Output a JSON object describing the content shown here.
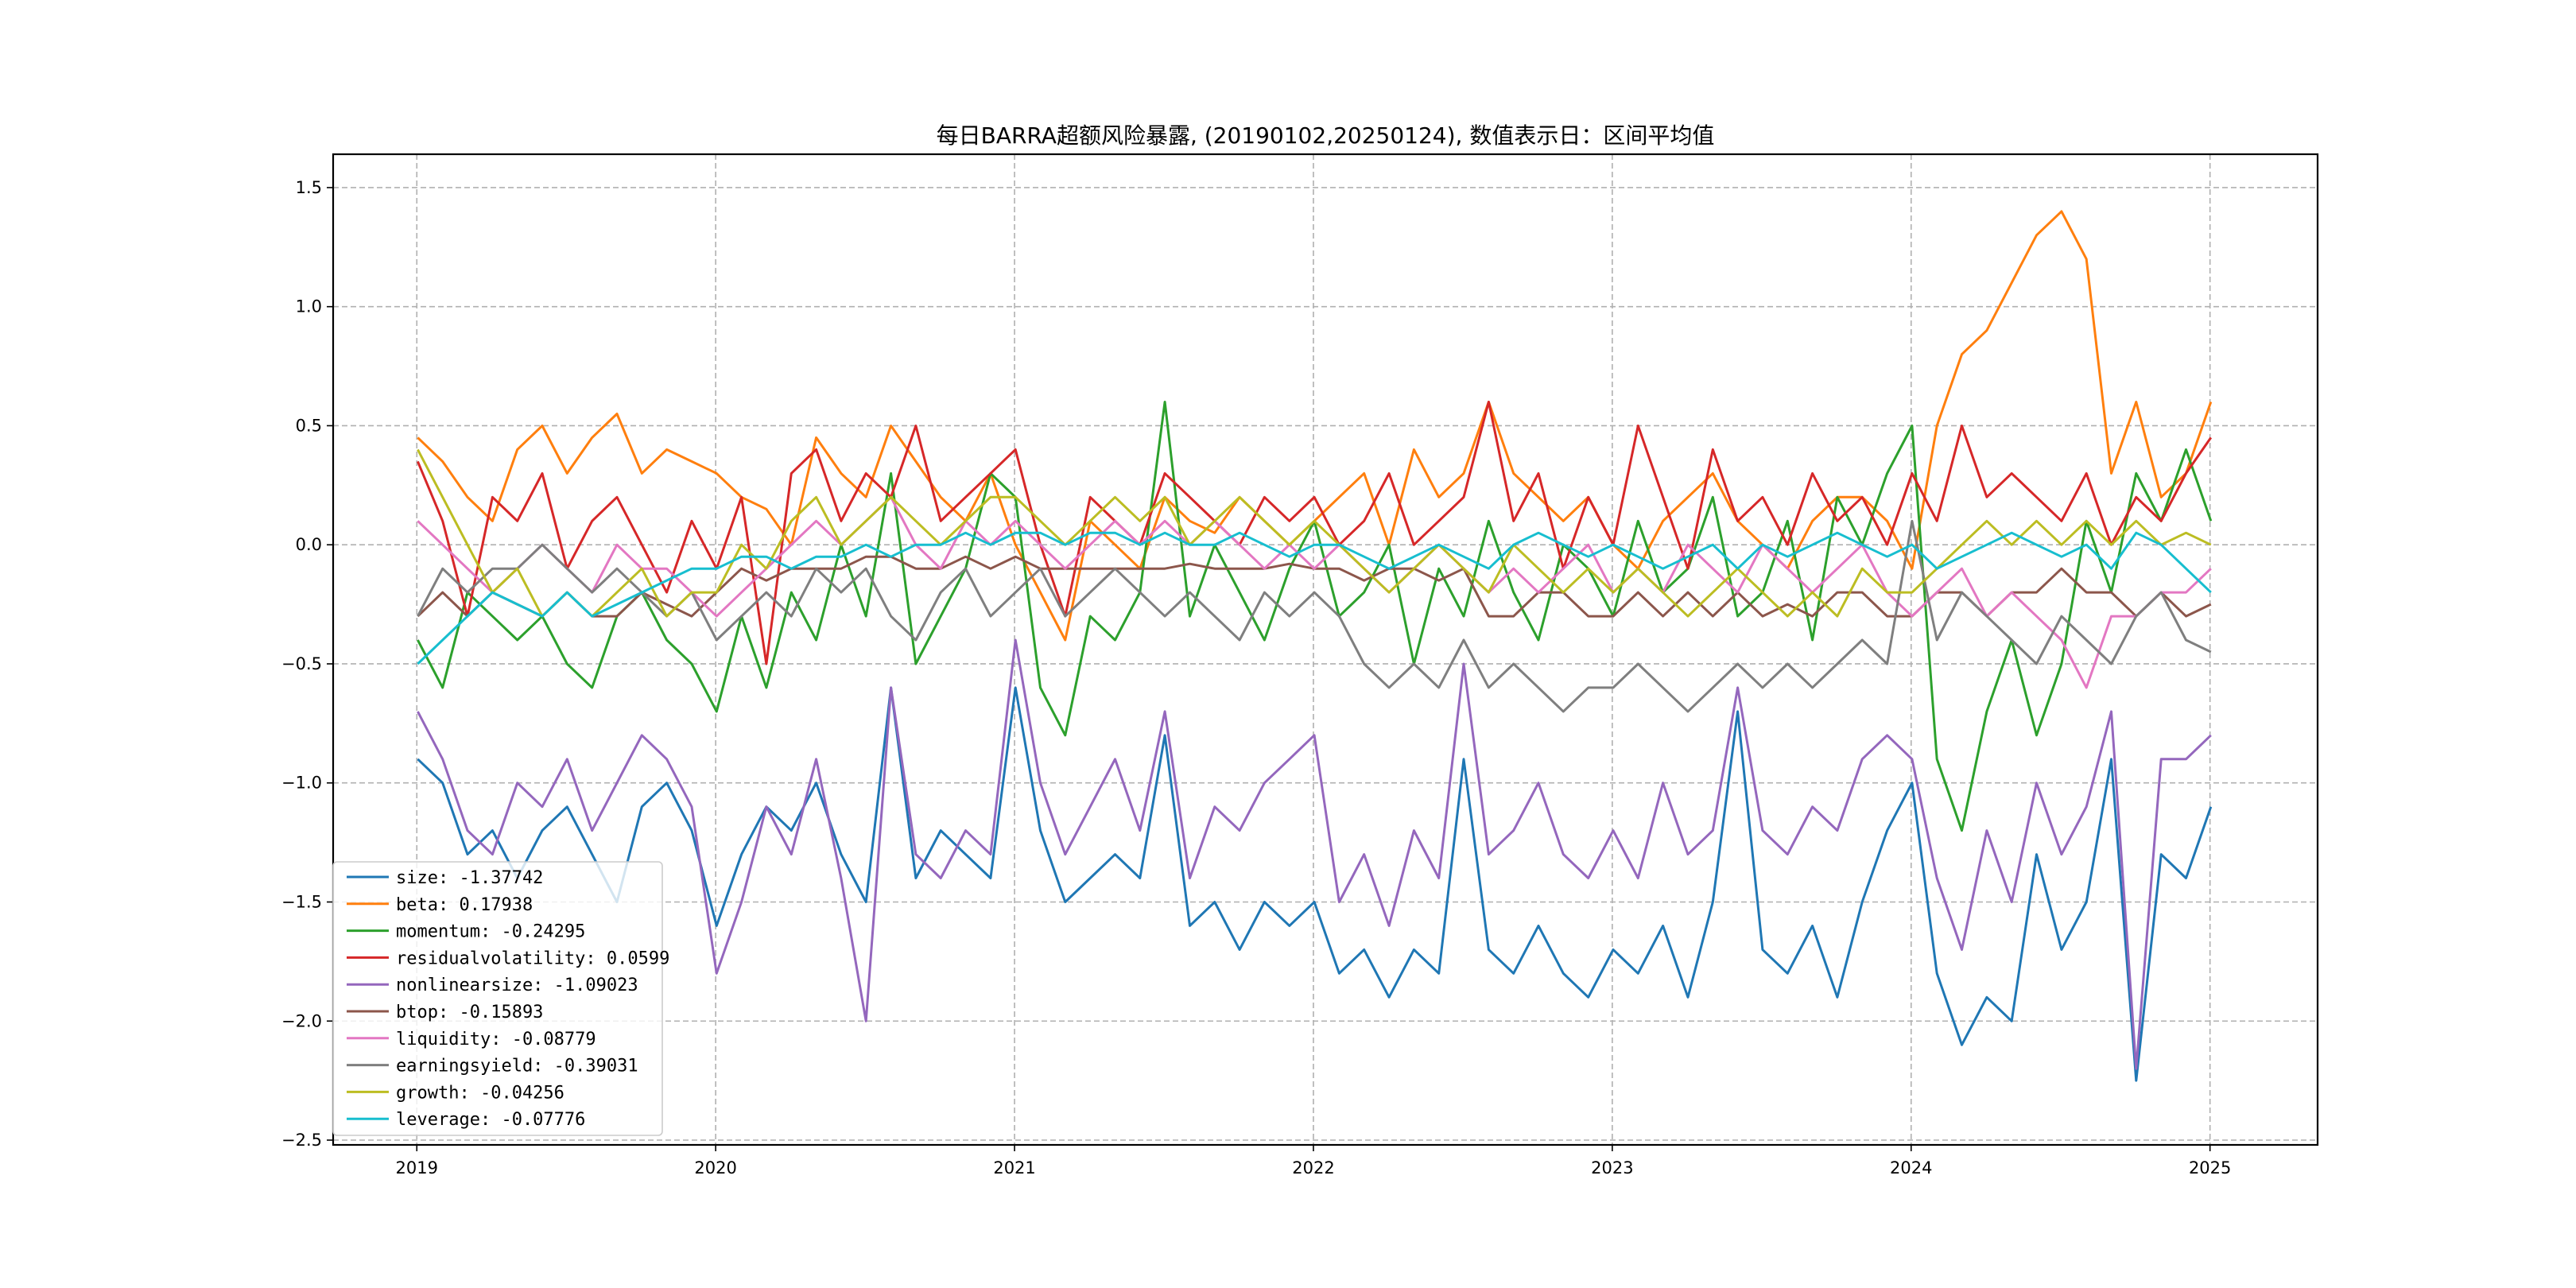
{
  "chart_data": {
    "type": "line",
    "title": "每日BARRA超额风险暴露, (20190102,20250124),  数值表示日：区间平均值",
    "xlabel": "",
    "ylabel": "",
    "x_start": "2019-01",
    "x_step": "month",
    "xlim": [
      2018.72,
      2025.36
    ],
    "ylim": [
      -2.52,
      1.64
    ],
    "grid": true,
    "legend_position": "lower-left",
    "x_ticks": [
      "2019",
      "2020",
      "2021",
      "2022",
      "2023",
      "2024",
      "2025"
    ],
    "x_tick_values": [
      2019,
      2020,
      2021,
      2022,
      2023,
      2024,
      2025
    ],
    "y_ticks": [
      "−2.5",
      "−2.0",
      "−1.5",
      "−1.0",
      "−0.5",
      "0.0",
      "0.5",
      "1.0",
      "1.5"
    ],
    "y_tick_values": [
      -2.5,
      -2.0,
      -1.5,
      -1.0,
      -0.5,
      0.0,
      0.5,
      1.0,
      1.5
    ],
    "series": [
      {
        "name": "size",
        "legend": "size: -1.37742",
        "color": "#1f77b4",
        "values": [
          -0.9,
          -1.0,
          -1.3,
          -1.2,
          -1.4,
          -1.2,
          -1.1,
          -1.3,
          -1.5,
          -1.1,
          -1.0,
          -1.2,
          -1.6,
          -1.3,
          -1.1,
          -1.2,
          -1.0,
          -1.3,
          -1.5,
          -0.6,
          -1.4,
          -1.2,
          -1.3,
          -1.4,
          -0.6,
          -1.2,
          -1.5,
          -1.4,
          -1.3,
          -1.4,
          -0.8,
          -1.6,
          -1.5,
          -1.7,
          -1.5,
          -1.6,
          -1.5,
          -1.8,
          -1.7,
          -1.9,
          -1.7,
          -1.8,
          -0.9,
          -1.7,
          -1.8,
          -1.6,
          -1.8,
          -1.9,
          -1.7,
          -1.8,
          -1.6,
          -1.9,
          -1.5,
          -0.7,
          -1.7,
          -1.8,
          -1.6,
          -1.9,
          -1.5,
          -1.2,
          -1.0,
          -1.8,
          -2.1,
          -1.9,
          -2.0,
          -1.3,
          -1.7,
          -1.5,
          -0.9,
          -2.25,
          -1.3,
          -1.4,
          -1.1
        ]
      },
      {
        "name": "beta",
        "legend": "beta: 0.17938",
        "color": "#ff7f0e",
        "values": [
          0.45,
          0.35,
          0.2,
          0.1,
          0.4,
          0.5,
          0.3,
          0.45,
          0.55,
          0.3,
          0.4,
          0.35,
          0.3,
          0.2,
          0.15,
          0.0,
          0.45,
          0.3,
          0.2,
          0.5,
          0.35,
          0.2,
          0.1,
          0.3,
          0.0,
          -0.2,
          -0.4,
          0.1,
          0.0,
          -0.1,
          0.2,
          0.1,
          0.05,
          0.2,
          0.1,
          0.0,
          0.1,
          0.2,
          0.3,
          0.0,
          0.4,
          0.2,
          0.3,
          0.6,
          0.3,
          0.2,
          0.1,
          0.2,
          0.0,
          -0.1,
          0.1,
          0.2,
          0.3,
          0.1,
          0.0,
          -0.1,
          0.1,
          0.2,
          0.2,
          0.1,
          -0.1,
          0.5,
          0.8,
          0.9,
          1.1,
          1.3,
          1.4,
          1.2,
          0.3,
          0.6,
          0.2,
          0.3,
          0.6
        ]
      },
      {
        "name": "momentum",
        "legend": "momentum: -0.24295",
        "color": "#2ca02c",
        "values": [
          -0.4,
          -0.6,
          -0.2,
          -0.3,
          -0.4,
          -0.3,
          -0.5,
          -0.6,
          -0.3,
          -0.2,
          -0.4,
          -0.5,
          -0.7,
          -0.3,
          -0.6,
          -0.2,
          -0.4,
          0.0,
          -0.3,
          0.3,
          -0.5,
          -0.3,
          -0.1,
          0.3,
          0.2,
          -0.6,
          -0.8,
          -0.3,
          -0.4,
          -0.2,
          0.6,
          -0.3,
          0.0,
          -0.2,
          -0.4,
          -0.1,
          0.1,
          -0.3,
          -0.2,
          0.0,
          -0.5,
          -0.1,
          -0.3,
          0.1,
          -0.2,
          -0.4,
          0.0,
          -0.1,
          -0.3,
          0.1,
          -0.2,
          -0.1,
          0.2,
          -0.3,
          -0.2,
          0.1,
          -0.4,
          0.2,
          0.0,
          0.3,
          0.5,
          -0.9,
          -1.2,
          -0.7,
          -0.4,
          -0.8,
          -0.5,
          0.1,
          -0.2,
          0.3,
          0.1,
          0.4,
          0.1
        ]
      },
      {
        "name": "residualvolatility",
        "legend": "residualvolatility: 0.0599",
        "color": "#d62728",
        "values": [
          0.35,
          0.1,
          -0.3,
          0.2,
          0.1,
          0.3,
          -0.1,
          0.1,
          0.2,
          0.0,
          -0.2,
          0.1,
          -0.1,
          0.2,
          -0.5,
          0.3,
          0.4,
          0.1,
          0.3,
          0.2,
          0.5,
          0.1,
          0.2,
          0.3,
          0.4,
          0.0,
          -0.3,
          0.2,
          0.1,
          0.0,
          0.3,
          0.2,
          0.1,
          0.0,
          0.2,
          0.1,
          0.2,
          0.0,
          0.1,
          0.3,
          0.0,
          0.1,
          0.2,
          0.6,
          0.1,
          0.3,
          -0.1,
          0.2,
          0.0,
          0.5,
          0.2,
          -0.1,
          0.4,
          0.1,
          0.2,
          0.0,
          0.3,
          0.1,
          0.2,
          0.0,
          0.3,
          0.1,
          0.5,
          0.2,
          0.3,
          0.2,
          0.1,
          0.3,
          0.0,
          0.2,
          0.1,
          0.3,
          0.45
        ]
      },
      {
        "name": "nonlinearsize",
        "legend": "nonlinearsize: -1.09023",
        "color": "#9467bd",
        "values": [
          -0.7,
          -0.9,
          -1.2,
          -1.3,
          -1.0,
          -1.1,
          -0.9,
          -1.2,
          -1.0,
          -0.8,
          -0.9,
          -1.1,
          -1.8,
          -1.5,
          -1.1,
          -1.3,
          -0.9,
          -1.4,
          -2.0,
          -0.6,
          -1.3,
          -1.4,
          -1.2,
          -1.3,
          -0.4,
          -1.0,
          -1.3,
          -1.1,
          -0.9,
          -1.2,
          -0.7,
          -1.4,
          -1.1,
          -1.2,
          -1.0,
          -0.9,
          -0.8,
          -1.5,
          -1.3,
          -1.6,
          -1.2,
          -1.4,
          -0.5,
          -1.3,
          -1.2,
          -1.0,
          -1.3,
          -1.4,
          -1.2,
          -1.4,
          -1.0,
          -1.3,
          -1.2,
          -0.6,
          -1.2,
          -1.3,
          -1.1,
          -1.2,
          -0.9,
          -0.8,
          -0.9,
          -1.4,
          -1.7,
          -1.2,
          -1.5,
          -1.0,
          -1.3,
          -1.1,
          -0.7,
          -2.2,
          -0.9,
          -0.9,
          -0.8
        ]
      },
      {
        "name": "btop",
        "legend": "btop: -0.15893",
        "color": "#8c564b",
        "values": [
          -0.3,
          -0.2,
          -0.3,
          -0.2,
          -0.25,
          -0.3,
          -0.2,
          -0.3,
          -0.3,
          -0.2,
          -0.25,
          -0.3,
          -0.2,
          -0.1,
          -0.15,
          -0.1,
          -0.1,
          -0.1,
          -0.05,
          -0.05,
          -0.1,
          -0.1,
          -0.05,
          -0.1,
          -0.05,
          -0.1,
          -0.1,
          -0.1,
          -0.1,
          -0.1,
          -0.1,
          -0.08,
          -0.1,
          -0.1,
          -0.1,
          -0.08,
          -0.1,
          -0.1,
          -0.15,
          -0.1,
          -0.1,
          -0.15,
          -0.1,
          -0.3,
          -0.3,
          -0.2,
          -0.2,
          -0.3,
          -0.3,
          -0.2,
          -0.3,
          -0.2,
          -0.3,
          -0.2,
          -0.3,
          -0.25,
          -0.3,
          -0.2,
          -0.2,
          -0.3,
          -0.3,
          -0.2,
          -0.2,
          -0.3,
          -0.2,
          -0.2,
          -0.1,
          -0.2,
          -0.2,
          -0.3,
          -0.2,
          -0.3,
          -0.25
        ]
      },
      {
        "name": "liquidity",
        "legend": "liquidity: -0.08779",
        "color": "#e377c2",
        "values": [
          0.1,
          0.0,
          -0.1,
          -0.2,
          -0.1,
          0.0,
          -0.1,
          -0.2,
          0.0,
          -0.1,
          -0.1,
          -0.2,
          -0.3,
          -0.2,
          -0.1,
          0.0,
          0.1,
          0.0,
          0.1,
          0.2,
          0.0,
          -0.1,
          0.1,
          0.0,
          0.1,
          0.0,
          -0.1,
          0.0,
          0.1,
          0.0,
          0.1,
          0.0,
          0.1,
          0.0,
          -0.1,
          0.0,
          -0.1,
          0.0,
          -0.1,
          -0.2,
          -0.1,
          0.0,
          -0.1,
          -0.2,
          -0.1,
          -0.2,
          -0.1,
          0.0,
          -0.2,
          -0.1,
          -0.2,
          0.0,
          -0.1,
          -0.2,
          0.0,
          -0.1,
          -0.2,
          -0.1,
          0.0,
          -0.2,
          -0.3,
          -0.2,
          -0.1,
          -0.3,
          -0.2,
          -0.3,
          -0.4,
          -0.6,
          -0.3,
          -0.3,
          -0.2,
          -0.2,
          -0.1
        ]
      },
      {
        "name": "earningsyield",
        "legend": "earningsyield: -0.39031",
        "color": "#7f7f7f",
        "values": [
          -0.3,
          -0.1,
          -0.2,
          -0.1,
          -0.1,
          0.0,
          -0.1,
          -0.2,
          -0.1,
          -0.2,
          -0.3,
          -0.2,
          -0.4,
          -0.3,
          -0.2,
          -0.3,
          -0.1,
          -0.2,
          -0.1,
          -0.3,
          -0.4,
          -0.2,
          -0.1,
          -0.3,
          -0.2,
          -0.1,
          -0.3,
          -0.2,
          -0.1,
          -0.2,
          -0.3,
          -0.2,
          -0.3,
          -0.4,
          -0.2,
          -0.3,
          -0.2,
          -0.3,
          -0.5,
          -0.6,
          -0.5,
          -0.6,
          -0.4,
          -0.6,
          -0.5,
          -0.6,
          -0.7,
          -0.6,
          -0.6,
          -0.5,
          -0.6,
          -0.7,
          -0.6,
          -0.5,
          -0.6,
          -0.5,
          -0.6,
          -0.5,
          -0.4,
          -0.5,
          0.1,
          -0.4,
          -0.2,
          -0.3,
          -0.4,
          -0.5,
          -0.3,
          -0.4,
          -0.5,
          -0.3,
          -0.2,
          -0.4,
          -0.45
        ]
      },
      {
        "name": "growth",
        "legend": "growth: -0.04256",
        "color": "#bcbd22",
        "values": [
          0.4,
          0.2,
          0.0,
          -0.2,
          -0.1,
          -0.3,
          -0.2,
          -0.3,
          -0.2,
          -0.1,
          -0.3,
          -0.2,
          -0.2,
          0.0,
          -0.1,
          0.1,
          0.2,
          0.0,
          0.1,
          0.2,
          0.1,
          0.0,
          0.1,
          0.2,
          0.2,
          0.1,
          0.0,
          0.1,
          0.2,
          0.1,
          0.2,
          0.0,
          0.1,
          0.2,
          0.1,
          0.0,
          0.1,
          0.0,
          -0.1,
          -0.2,
          -0.1,
          0.0,
          -0.1,
          -0.2,
          0.0,
          -0.1,
          -0.2,
          -0.1,
          -0.2,
          -0.1,
          -0.2,
          -0.3,
          -0.2,
          -0.1,
          -0.2,
          -0.3,
          -0.2,
          -0.3,
          -0.1,
          -0.2,
          -0.2,
          -0.1,
          0.0,
          0.1,
          0.0,
          0.1,
          0.0,
          0.1,
          0.0,
          0.1,
          0.0,
          0.05,
          0.0
        ]
      },
      {
        "name": "leverage",
        "legend": "leverage: -0.07776",
        "color": "#17becf",
        "values": [
          -0.5,
          -0.4,
          -0.3,
          -0.2,
          -0.25,
          -0.3,
          -0.2,
          -0.3,
          -0.25,
          -0.2,
          -0.15,
          -0.1,
          -0.1,
          -0.05,
          -0.05,
          -0.1,
          -0.05,
          -0.05,
          0.0,
          -0.05,
          0.0,
          0.0,
          0.05,
          0.0,
          0.05,
          0.05,
          0.0,
          0.05,
          0.05,
          0.0,
          0.05,
          0.0,
          0.0,
          0.05,
          0.0,
          -0.05,
          0.0,
          0.0,
          -0.05,
          -0.1,
          -0.05,
          0.0,
          -0.05,
          -0.1,
          0.0,
          0.05,
          0.0,
          -0.05,
          0.0,
          -0.05,
          -0.1,
          -0.05,
          0.0,
          -0.1,
          0.0,
          -0.05,
          0.0,
          0.05,
          0.0,
          -0.05,
          0.0,
          -0.1,
          -0.05,
          0.0,
          0.05,
          0.0,
          -0.05,
          0.0,
          -0.1,
          0.05,
          0.0,
          -0.1,
          -0.2
        ]
      }
    ]
  }
}
